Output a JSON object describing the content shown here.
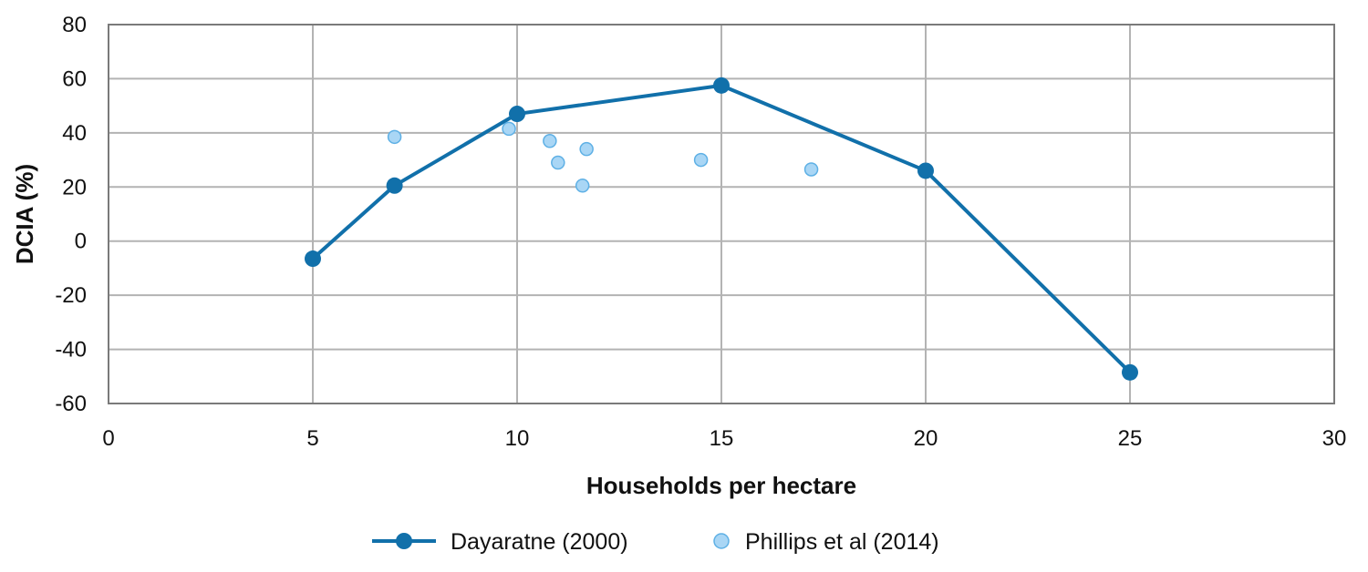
{
  "chart_data": {
    "type": "line",
    "xlabel": "Households per hectare",
    "ylabel": "DCIA (%)",
    "xlim": [
      0,
      30
    ],
    "ylim": [
      -60,
      80
    ],
    "xticks": [
      0,
      5,
      10,
      15,
      20,
      25,
      30
    ],
    "yticks": [
      -60,
      -40,
      -20,
      0,
      20,
      40,
      60,
      80
    ],
    "xtick_labels": [
      "0",
      "5",
      "10",
      "15",
      "20",
      "25",
      "30"
    ],
    "ytick_labels": [
      "-60",
      "-40",
      "-20",
      "0",
      "20",
      "40",
      "60",
      "80"
    ],
    "grid": true,
    "legend_position": "bottom-center",
    "series": [
      {
        "name": "Dayaratne (2000)",
        "style": "line-marker",
        "color": "#1170aa",
        "x": [
          5,
          7,
          10,
          15,
          20,
          25
        ],
        "y": [
          -6.5,
          20.5,
          47,
          57.5,
          26,
          -48.5
        ]
      },
      {
        "name": "Phillips et al (2014)",
        "style": "scatter",
        "color": "#a9d6f5",
        "stroke": "#5eb0e5",
        "x": [
          7,
          9.8,
          10.8,
          11,
          11.6,
          11.7,
          14.5,
          17.2
        ],
        "y": [
          38.5,
          41.5,
          37,
          29,
          20.5,
          34,
          30,
          26.5
        ]
      }
    ]
  }
}
